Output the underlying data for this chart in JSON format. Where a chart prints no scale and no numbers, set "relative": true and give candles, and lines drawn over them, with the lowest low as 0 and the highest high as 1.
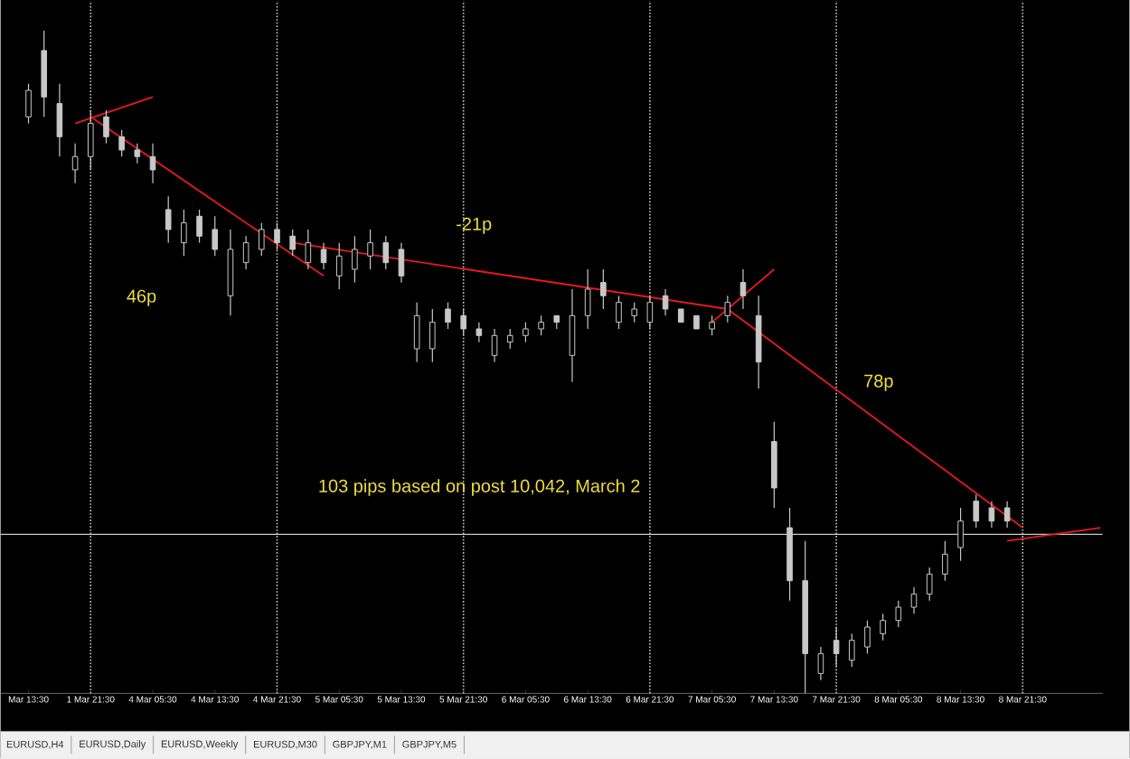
{
  "chart_data": {
    "type": "candlestick",
    "relative": true,
    "color": "#c8c8c8",
    "categories": [
      "Mar 13:30",
      null,
      null,
      null,
      "1 Mar 21:30",
      null,
      null,
      null,
      "4 Mar 05:30",
      null,
      null,
      null,
      "4 Mar 13:30",
      null,
      null,
      null,
      "4 Mar 21:30",
      null,
      null,
      null,
      "5 Mar 05:30",
      null,
      null,
      null,
      "5 Mar 13:30",
      null,
      null,
      null,
      "5 Mar 21:30",
      null,
      null,
      null,
      "6 Mar 05:30",
      null,
      null,
      null,
      "6 Mar 13:30",
      null,
      null,
      null,
      "6 Mar 21:30",
      null,
      null,
      null,
      "7 Mar 05:30",
      null,
      null,
      null,
      "7 Mar 13:30",
      null,
      null,
      null,
      "7 Mar 21:30",
      null,
      null,
      null,
      "8 Mar 05:30",
      null,
      null,
      null,
      "8 Mar 13:30",
      null,
      null,
      null,
      "8 Mar 21:30",
      null,
      null,
      null,
      null,
      null
    ],
    "ohlc": [
      [
        0.87,
        0.92,
        0.86,
        0.91
      ],
      [
        0.97,
        1.0,
        0.87,
        0.9
      ],
      [
        0.89,
        0.92,
        0.81,
        0.84
      ],
      [
        0.79,
        0.83,
        0.77,
        0.81
      ],
      [
        0.81,
        0.88,
        0.79,
        0.86
      ],
      [
        0.87,
        0.88,
        0.83,
        0.84
      ],
      [
        0.84,
        0.85,
        0.81,
        0.82
      ],
      [
        0.82,
        0.83,
        0.8,
        0.81
      ],
      [
        0.81,
        0.83,
        0.77,
        0.79
      ],
      [
        0.73,
        0.75,
        0.68,
        0.7
      ],
      [
        0.68,
        0.73,
        0.66,
        0.71
      ],
      [
        0.72,
        0.73,
        0.68,
        0.69
      ],
      [
        0.7,
        0.72,
        0.66,
        0.67
      ],
      [
        0.6,
        0.7,
        0.57,
        0.67
      ],
      [
        0.65,
        0.69,
        0.64,
        0.68
      ],
      [
        0.67,
        0.71,
        0.66,
        0.7
      ],
      [
        0.7,
        0.71,
        0.67,
        0.68
      ],
      [
        0.69,
        0.7,
        0.66,
        0.67
      ],
      [
        0.65,
        0.7,
        0.64,
        0.68
      ],
      [
        0.67,
        0.68,
        0.64,
        0.65
      ],
      [
        0.63,
        0.68,
        0.61,
        0.66
      ],
      [
        0.64,
        0.69,
        0.62,
        0.67
      ],
      [
        0.66,
        0.7,
        0.64,
        0.68
      ],
      [
        0.68,
        0.69,
        0.64,
        0.65
      ],
      [
        0.67,
        0.68,
        0.62,
        0.63
      ],
      [
        0.52,
        0.59,
        0.5,
        0.57
      ],
      [
        0.52,
        0.58,
        0.5,
        0.56
      ],
      [
        0.58,
        0.59,
        0.55,
        0.56
      ],
      [
        0.57,
        0.58,
        0.54,
        0.55
      ],
      [
        0.55,
        0.56,
        0.53,
        0.54
      ],
      [
        0.51,
        0.55,
        0.5,
        0.54
      ],
      [
        0.53,
        0.55,
        0.52,
        0.54
      ],
      [
        0.54,
        0.56,
        0.53,
        0.55
      ],
      [
        0.55,
        0.57,
        0.54,
        0.56
      ],
      [
        0.57,
        0.57,
        0.55,
        0.56
      ],
      [
        0.51,
        0.61,
        0.47,
        0.57
      ],
      [
        0.57,
        0.64,
        0.55,
        0.61
      ],
      [
        0.62,
        0.64,
        0.58,
        0.6
      ],
      [
        0.56,
        0.6,
        0.55,
        0.59
      ],
      [
        0.57,
        0.59,
        0.56,
        0.58
      ],
      [
        0.56,
        0.6,
        0.55,
        0.59
      ],
      [
        0.6,
        0.61,
        0.57,
        0.58
      ],
      [
        0.58,
        0.58,
        0.56,
        0.56
      ],
      [
        0.57,
        0.57,
        0.55,
        0.55
      ],
      [
        0.55,
        0.57,
        0.54,
        0.56
      ],
      [
        0.57,
        0.6,
        0.56,
        0.59
      ],
      [
        0.62,
        0.64,
        0.58,
        0.6
      ],
      [
        0.57,
        0.6,
        0.46,
        0.5
      ],
      [
        0.38,
        0.41,
        0.28,
        0.31
      ],
      [
        0.25,
        0.28,
        0.14,
        0.17
      ],
      [
        0.17,
        0.23,
        0.0,
        0.06
      ],
      [
        0.03,
        0.07,
        0.02,
        0.06
      ],
      [
        0.08,
        0.1,
        0.04,
        0.06
      ],
      [
        0.05,
        0.09,
        0.04,
        0.08
      ],
      [
        0.07,
        0.11,
        0.06,
        0.1
      ],
      [
        0.09,
        0.12,
        0.08,
        0.11
      ],
      [
        0.11,
        0.14,
        0.1,
        0.13
      ],
      [
        0.13,
        0.16,
        0.12,
        0.15
      ],
      [
        0.15,
        0.19,
        0.14,
        0.18
      ],
      [
        0.18,
        0.23,
        0.17,
        0.21
      ],
      [
        0.22,
        0.28,
        0.2,
        0.26
      ],
      [
        0.29,
        0.3,
        0.25,
        0.26
      ],
      [
        0.28,
        0.29,
        0.25,
        0.26
      ],
      [
        0.28,
        0.29,
        0.25,
        0.26
      ],
      null,
      null,
      null,
      null,
      null,
      null
    ],
    "series": [
      {
        "type": "line",
        "color": "#e8191e",
        "values": [
          null,
          null,
          null,
          0.86,
          null,
          null,
          null,
          null,
          0.9,
          null,
          null,
          null,
          null,
          null,
          null,
          null,
          null,
          null,
          null,
          null,
          null,
          null,
          null,
          null,
          null,
          null,
          null,
          null,
          null,
          null,
          null,
          null,
          null,
          null,
          null,
          null,
          null,
          null,
          null,
          null,
          null,
          null,
          null,
          null,
          null,
          null,
          null,
          null,
          null,
          null,
          null,
          null,
          null,
          null,
          null,
          null,
          null,
          null,
          null,
          null,
          null,
          null,
          null,
          null,
          null,
          null,
          null,
          null,
          null,
          null
        ]
      },
      {
        "type": "line",
        "color": "#e8191e",
        "values": [
          null,
          null,
          null,
          null,
          0.87,
          null,
          null,
          null,
          null,
          null,
          null,
          null,
          null,
          null,
          null,
          null,
          null,
          null,
          null,
          0.63,
          null,
          null,
          null,
          null,
          null,
          null,
          null,
          null,
          null,
          null,
          null,
          null,
          null,
          null,
          null,
          null,
          null,
          null,
          null,
          null,
          null,
          null,
          null,
          null,
          null,
          null,
          null,
          null,
          null,
          null,
          null,
          null,
          null,
          null,
          null,
          null,
          null,
          null,
          null,
          null,
          null,
          null,
          null,
          null,
          null,
          null,
          null,
          null,
          null,
          null
        ]
      },
      {
        "type": "line",
        "color": "#e8191e",
        "values": [
          null,
          null,
          null,
          null,
          null,
          null,
          null,
          null,
          null,
          null,
          null,
          null,
          null,
          null,
          null,
          null,
          null,
          0.68,
          null,
          null,
          null,
          null,
          null,
          null,
          null,
          null,
          null,
          null,
          null,
          null,
          null,
          null,
          null,
          null,
          null,
          null,
          null,
          null,
          null,
          null,
          null,
          null,
          null,
          null,
          null,
          0.58,
          null,
          null,
          null,
          null,
          null,
          null,
          null,
          null,
          null,
          null,
          null,
          null,
          null,
          null,
          null,
          null,
          null,
          null,
          null,
          null,
          null,
          null,
          null,
          null
        ]
      },
      {
        "type": "line",
        "color": "#e8191e",
        "values": [
          null,
          null,
          null,
          null,
          null,
          null,
          null,
          null,
          null,
          null,
          null,
          null,
          null,
          null,
          null,
          null,
          null,
          null,
          null,
          null,
          null,
          null,
          null,
          null,
          null,
          null,
          null,
          null,
          null,
          null,
          null,
          null,
          null,
          null,
          null,
          null,
          null,
          null,
          null,
          null,
          null,
          null,
          null,
          null,
          null,
          0.58,
          null,
          null,
          null,
          null,
          null,
          null,
          null,
          null,
          null,
          null,
          null,
          null,
          null,
          null,
          null,
          null,
          null,
          null,
          0.25,
          null,
          null,
          null,
          null,
          null
        ]
      },
      {
        "type": "line",
        "color": "#e8191e",
        "values": [
          null,
          null,
          null,
          null,
          null,
          null,
          null,
          null,
          null,
          null,
          null,
          null,
          null,
          null,
          null,
          null,
          null,
          null,
          null,
          null,
          null,
          null,
          null,
          null,
          null,
          null,
          null,
          null,
          null,
          null,
          null,
          null,
          null,
          null,
          null,
          null,
          null,
          null,
          null,
          null,
          null,
          null,
          null,
          null,
          0.56,
          null,
          null,
          null,
          0.64,
          null,
          null,
          null,
          null,
          null,
          null,
          null,
          null,
          null,
          null,
          null,
          null,
          null,
          null,
          null,
          null,
          null,
          null,
          null,
          null,
          null
        ]
      },
      {
        "type": "line",
        "color": "#e8191e",
        "values": [
          null,
          null,
          null,
          null,
          null,
          null,
          null,
          null,
          null,
          null,
          null,
          null,
          null,
          null,
          null,
          null,
          null,
          null,
          null,
          null,
          null,
          null,
          null,
          null,
          null,
          null,
          null,
          null,
          null,
          null,
          null,
          null,
          null,
          null,
          null,
          null,
          null,
          null,
          null,
          null,
          null,
          null,
          null,
          null,
          null,
          null,
          null,
          null,
          null,
          null,
          null,
          null,
          null,
          null,
          null,
          null,
          null,
          null,
          null,
          null,
          null,
          null,
          null,
          0.23,
          null,
          null,
          null,
          null,
          null,
          0.25
        ]
      }
    ],
    "ref_lines": [
      {
        "axis": "y",
        "value": 0.24,
        "color": "#c8c8c8",
        "line_style": "solid"
      },
      {
        "axis": "x",
        "value": "1 Mar 21:30",
        "color": "#c8c8c8",
        "line_style": "dotted"
      },
      {
        "axis": "x",
        "value": "4 Mar 21:30",
        "color": "#c8c8c8",
        "line_style": "dotted"
      },
      {
        "axis": "x",
        "value": "5 Mar 21:30",
        "color": "#c8c8c8",
        "line_style": "dotted"
      },
      {
        "axis": "x",
        "value": "6 Mar 21:30",
        "color": "#c8c8c8",
        "line_style": "dotted"
      },
      {
        "axis": "x",
        "value": "7 Mar 21:30",
        "color": "#c8c8c8",
        "line_style": "dotted"
      },
      {
        "axis": "x",
        "value": "8 Mar 21:30",
        "color": "#c8c8c8",
        "line_style": "dotted"
      }
    ],
    "annotations": [
      "46p",
      "-21p",
      "78p",
      "103 pips based on post 10,042, March 2",
      "EURUSD,H4",
      "EURUSD,Daily",
      "EURUSD,Weekly",
      "EURUSD,M30",
      "GBPJPY,M1",
      "GBPJPY,M5"
    ]
  }
}
